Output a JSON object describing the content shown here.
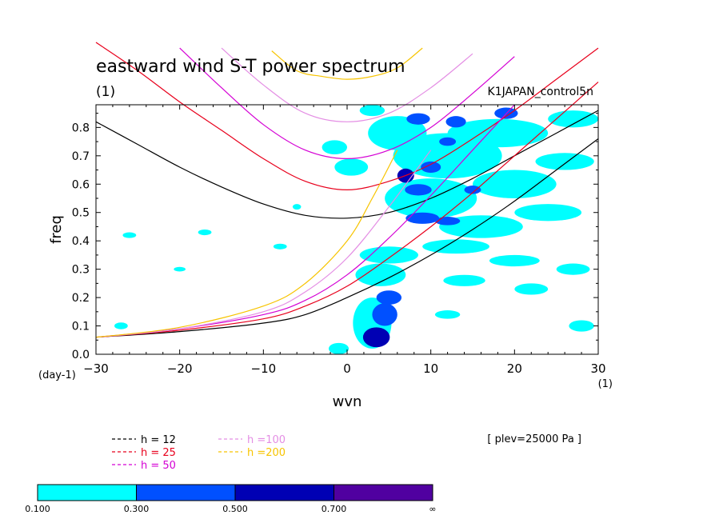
{
  "chart_data": {
    "type": "heatmap",
    "title": "eastward wind S-T power spectrum",
    "subtitle": "(1)",
    "dataset": "K1JAPAN_control5n",
    "xlabel": "wvn",
    "ylabel": "freq",
    "x_unit": "(1)",
    "y_unit": "(day-1)",
    "xlim": [
      -30,
      30
    ],
    "ylim": [
      0.0,
      0.88
    ],
    "xticks": [
      -30,
      -20,
      -10,
      0,
      10,
      20,
      30
    ],
    "yticks": [
      0.0,
      0.1,
      0.2,
      0.3,
      0.4,
      0.5,
      0.6,
      0.7,
      0.8
    ],
    "xtick_labels": [
      "−30",
      "−20",
      "−10",
      "0",
      "10",
      "20",
      "30"
    ],
    "ytick_labels": [
      "0.0",
      "0.1",
      "0.2",
      "0.3",
      "0.4",
      "0.5",
      "0.6",
      "0.7",
      "0.8"
    ],
    "plev_label": "[ plev=25000 Pa ]",
    "legend_placement": "below plot, left",
    "series": [
      {
        "name": "h = 12",
        "color": "#000000"
      },
      {
        "name": "h = 25",
        "color": "#e8001c"
      },
      {
        "name": "h = 50",
        "color": "#d400d4"
      },
      {
        "name": "h =100",
        "color": "#e48ee4"
      },
      {
        "name": "h =200",
        "color": "#f7c400"
      }
    ],
    "colorbar": {
      "levels": [
        "0.100",
        "0.300",
        "0.500",
        "0.700",
        "∞"
      ],
      "colors": [
        "#00ffff",
        "#0050ff",
        "#0000b4",
        "#5000a0"
      ]
    },
    "power_blobs": [
      {
        "x": 3.5,
        "y": 0.06,
        "rx": 1.6,
        "ry": 0.035,
        "level": 3
      },
      {
        "x": 4.5,
        "y": 0.14,
        "rx": 1.5,
        "ry": 0.04,
        "level": 2
      },
      {
        "x": 5.0,
        "y": 0.2,
        "rx": 1.5,
        "ry": 0.025,
        "level": 2
      },
      {
        "x": 3.0,
        "y": 0.11,
        "rx": 2.3,
        "ry": 0.09,
        "level": 1
      },
      {
        "x": 4.0,
        "y": 0.28,
        "rx": 3.0,
        "ry": 0.04,
        "level": 1
      },
      {
        "x": 5.0,
        "y": 0.35,
        "rx": 3.5,
        "ry": 0.03,
        "level": 1
      },
      {
        "x": 7.0,
        "y": 0.63,
        "rx": 1.0,
        "ry": 0.025,
        "level": 3
      },
      {
        "x": 8.5,
        "y": 0.58,
        "rx": 1.6,
        "ry": 0.02,
        "level": 2
      },
      {
        "x": 9.0,
        "y": 0.48,
        "rx": 2.0,
        "ry": 0.02,
        "level": 2
      },
      {
        "x": 12.0,
        "y": 0.47,
        "rx": 1.5,
        "ry": 0.015,
        "level": 2
      },
      {
        "x": 10.0,
        "y": 0.66,
        "rx": 1.2,
        "ry": 0.02,
        "level": 2
      },
      {
        "x": 8.5,
        "y": 0.83,
        "rx": 1.4,
        "ry": 0.02,
        "level": 2
      },
      {
        "x": 13.0,
        "y": 0.82,
        "rx": 1.2,
        "ry": 0.02,
        "level": 2
      },
      {
        "x": 19.0,
        "y": 0.85,
        "rx": 1.4,
        "ry": 0.02,
        "level": 2
      },
      {
        "x": 12.0,
        "y": 0.75,
        "rx": 1.0,
        "ry": 0.015,
        "level": 2
      },
      {
        "x": 15.0,
        "y": 0.58,
        "rx": 1.0,
        "ry": 0.015,
        "level": 2
      },
      {
        "x": 6.0,
        "y": 0.78,
        "rx": 3.5,
        "ry": 0.06,
        "level": 1
      },
      {
        "x": 12.0,
        "y": 0.7,
        "rx": 6.5,
        "ry": 0.08,
        "level": 1
      },
      {
        "x": 10.0,
        "y": 0.55,
        "rx": 5.5,
        "ry": 0.07,
        "level": 1
      },
      {
        "x": 18.0,
        "y": 0.78,
        "rx": 6.0,
        "ry": 0.05,
        "level": 1
      },
      {
        "x": 20.0,
        "y": 0.6,
        "rx": 5.0,
        "ry": 0.05,
        "level": 1
      },
      {
        "x": 16.0,
        "y": 0.45,
        "rx": 5.0,
        "ry": 0.04,
        "level": 1
      },
      {
        "x": 24.0,
        "y": 0.5,
        "rx": 4.0,
        "ry": 0.03,
        "level": 1
      },
      {
        "x": 26.0,
        "y": 0.68,
        "rx": 3.5,
        "ry": 0.03,
        "level": 1
      },
      {
        "x": 27.0,
        "y": 0.83,
        "rx": 3.0,
        "ry": 0.03,
        "level": 1
      },
      {
        "x": 3.0,
        "y": 0.86,
        "rx": 1.5,
        "ry": 0.02,
        "level": 1
      },
      {
        "x": 0.5,
        "y": 0.66,
        "rx": 2.0,
        "ry": 0.03,
        "level": 1
      },
      {
        "x": -1.5,
        "y": 0.73,
        "rx": 1.5,
        "ry": 0.025,
        "level": 1
      },
      {
        "x": 13.0,
        "y": 0.38,
        "rx": 4.0,
        "ry": 0.025,
        "level": 1
      },
      {
        "x": 20.0,
        "y": 0.33,
        "rx": 3.0,
        "ry": 0.02,
        "level": 1
      },
      {
        "x": 14.0,
        "y": 0.26,
        "rx": 2.5,
        "ry": 0.02,
        "level": 1
      },
      {
        "x": 22.0,
        "y": 0.23,
        "rx": 2.0,
        "ry": 0.02,
        "level": 1
      },
      {
        "x": 27.0,
        "y": 0.3,
        "rx": 2.0,
        "ry": 0.02,
        "level": 1
      },
      {
        "x": 28.0,
        "y": 0.1,
        "rx": 1.5,
        "ry": 0.02,
        "level": 1
      },
      {
        "x": 12.0,
        "y": 0.14,
        "rx": 1.5,
        "ry": 0.015,
        "level": 1
      },
      {
        "x": -27.0,
        "y": 0.1,
        "rx": 0.8,
        "ry": 0.012,
        "level": 1
      },
      {
        "x": -17.0,
        "y": 0.43,
        "rx": 0.8,
        "ry": 0.01,
        "level": 1
      },
      {
        "x": -26.0,
        "y": 0.42,
        "rx": 0.8,
        "ry": 0.01,
        "level": 1
      },
      {
        "x": -8.0,
        "y": 0.38,
        "rx": 0.8,
        "ry": 0.01,
        "level": 1
      },
      {
        "x": -6.0,
        "y": 0.52,
        "rx": 0.5,
        "ry": 0.01,
        "level": 1
      },
      {
        "x": -20.0,
        "y": 0.3,
        "rx": 0.7,
        "ry": 0.008,
        "level": 1
      },
      {
        "x": -1.0,
        "y": 0.02,
        "rx": 1.2,
        "ry": 0.02,
        "level": 1
      }
    ],
    "dispersion_curves": [
      {
        "series": 0,
        "x": [
          -30,
          -25,
          -20,
          -15,
          -10,
          -5,
          0,
          5,
          10,
          15,
          20,
          25,
          30
        ],
        "y": [
          0.82,
          0.74,
          0.66,
          0.59,
          0.53,
          0.49,
          0.48,
          0.5,
          0.55,
          0.62,
          0.7,
          0.78,
          0.86
        ]
      },
      {
        "series": 1,
        "x": [
          -30,
          -25,
          -20,
          -15,
          -10,
          -5,
          0,
          5,
          10,
          15,
          20,
          25,
          30
        ],
        "y": [
          1.1,
          1.0,
          0.89,
          0.79,
          0.69,
          0.61,
          0.58,
          0.61,
          0.67,
          0.76,
          0.86,
          0.97,
          1.08
        ]
      },
      {
        "series": 2,
        "x": [
          -20,
          -15,
          -10,
          -5,
          0,
          5,
          10,
          15,
          20
        ],
        "y": [
          1.08,
          0.94,
          0.81,
          0.72,
          0.69,
          0.72,
          0.8,
          0.92,
          1.05
        ]
      },
      {
        "series": 3,
        "x": [
          -15,
          -10,
          -5,
          0,
          5,
          10,
          15
        ],
        "y": [
          1.08,
          0.95,
          0.85,
          0.82,
          0.85,
          0.94,
          1.06
        ]
      },
      {
        "series": 4,
        "x": [
          -9,
          -6,
          -3,
          0,
          3,
          6,
          9
        ],
        "y": [
          1.07,
          1.0,
          0.98,
          0.97,
          0.98,
          1.01,
          1.08
        ]
      },
      {
        "series": 0,
        "x": [
          -30,
          -20,
          -10,
          -5,
          0,
          5,
          10,
          15,
          20,
          25,
          30
        ],
        "y": [
          0.06,
          0.08,
          0.11,
          0.14,
          0.2,
          0.27,
          0.35,
          0.44,
          0.54,
          0.65,
          0.76
        ]
      },
      {
        "series": 1,
        "x": [
          -30,
          -20,
          -10,
          -5,
          0,
          5,
          10,
          15,
          20,
          25,
          30
        ],
        "y": [
          0.06,
          0.085,
          0.125,
          0.17,
          0.24,
          0.34,
          0.45,
          0.57,
          0.7,
          0.83,
          0.96
        ]
      },
      {
        "series": 2,
        "x": [
          -30,
          -20,
          -10,
          -5,
          0,
          5,
          10,
          15,
          20
        ],
        "y": [
          0.06,
          0.09,
          0.14,
          0.19,
          0.28,
          0.41,
          0.56,
          0.72,
          0.88
        ]
      },
      {
        "series": 3,
        "x": [
          -30,
          -20,
          -10,
          -5,
          0,
          5,
          10
        ],
        "y": [
          0.06,
          0.09,
          0.15,
          0.22,
          0.34,
          0.52,
          0.72
        ]
      },
      {
        "series": 4,
        "x": [
          -30,
          -20,
          -10,
          -5,
          0,
          3,
          6
        ],
        "y": [
          0.06,
          0.095,
          0.17,
          0.25,
          0.4,
          0.55,
          0.72
        ]
      }
    ],
    "grid": false
  }
}
